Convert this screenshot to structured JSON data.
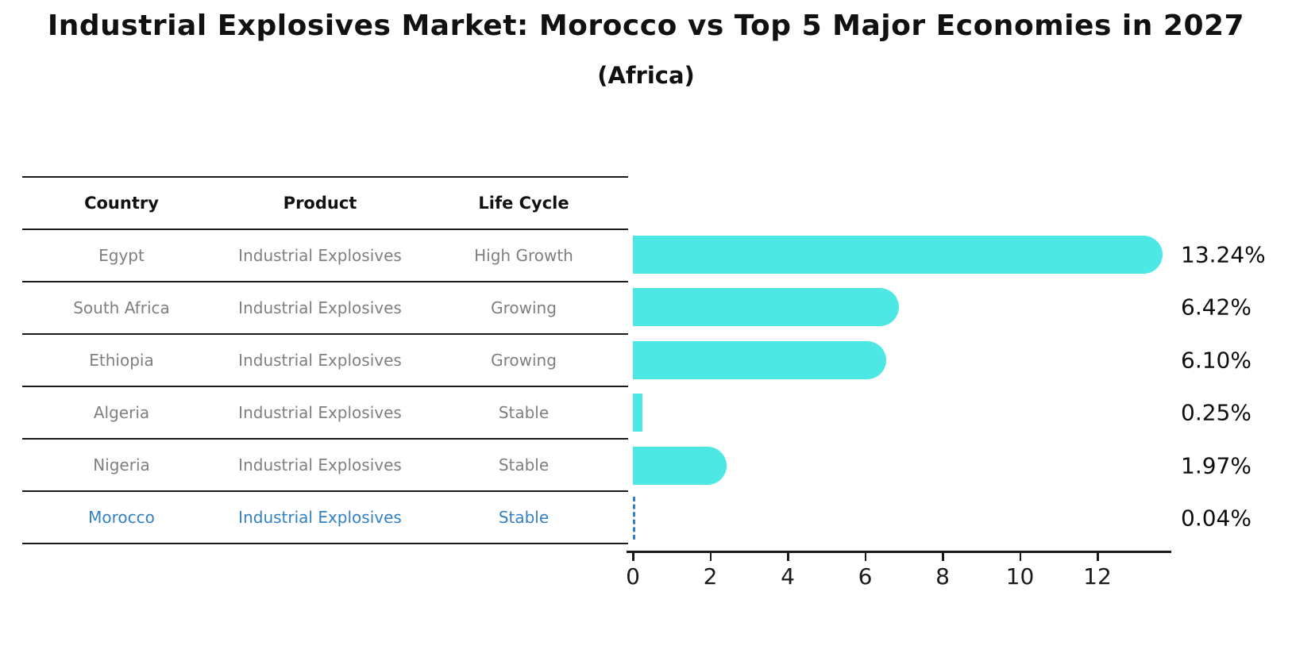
{
  "title": "Industrial Explosives Market: Morocco vs Top 5 Major Economies in 2027",
  "subtitle": "(Africa)",
  "table": {
    "headers": [
      "Country",
      "Product",
      "Life Cycle"
    ],
    "rows": [
      {
        "country": "Egypt",
        "product": "Industrial Explosives",
        "life_cycle": "High Growth",
        "highlight": false
      },
      {
        "country": "South Africa",
        "product": "Industrial Explosives",
        "life_cycle": "Growing",
        "highlight": false
      },
      {
        "country": "Ethiopia",
        "product": "Industrial Explosives",
        "life_cycle": "Growing",
        "highlight": false
      },
      {
        "country": "Algeria",
        "product": "Industrial Explosives",
        "life_cycle": "Stable",
        "highlight": false
      },
      {
        "country": "Nigeria",
        "product": "Industrial Explosives",
        "life_cycle": "Stable",
        "highlight": false
      },
      {
        "country": "Morocco",
        "product": "Industrial Explosives",
        "life_cycle": "Stable",
        "highlight": true
      }
    ]
  },
  "chart_data": {
    "type": "bar",
    "orientation": "horizontal",
    "title": "Industrial Explosives Market: Morocco vs Top 5 Major Economies in 2027 (Africa)",
    "categories": [
      "Egypt",
      "South Africa",
      "Ethiopia",
      "Algeria",
      "Nigeria",
      "Morocco"
    ],
    "values": [
      13.24,
      6.42,
      6.1,
      0.25,
      1.97,
      0.04
    ],
    "value_labels": [
      "13.24%",
      "6.42%",
      "6.10%",
      "0.25%",
      "1.97%",
      "0.04%"
    ],
    "highlight_category": "Morocco",
    "xlabel": "",
    "ylabel": "",
    "xlim": [
      0,
      13.9
    ],
    "x_ticks": [
      0,
      2,
      4,
      6,
      8,
      10,
      12
    ],
    "grid": false,
    "legend": false
  },
  "colors": {
    "bar": "#4de8e4",
    "highlight": "#3380c4",
    "row_text": "#7f7f7f",
    "header_text": "#111111",
    "axis": "#1a1a1a",
    "background": "#ffffff"
  }
}
